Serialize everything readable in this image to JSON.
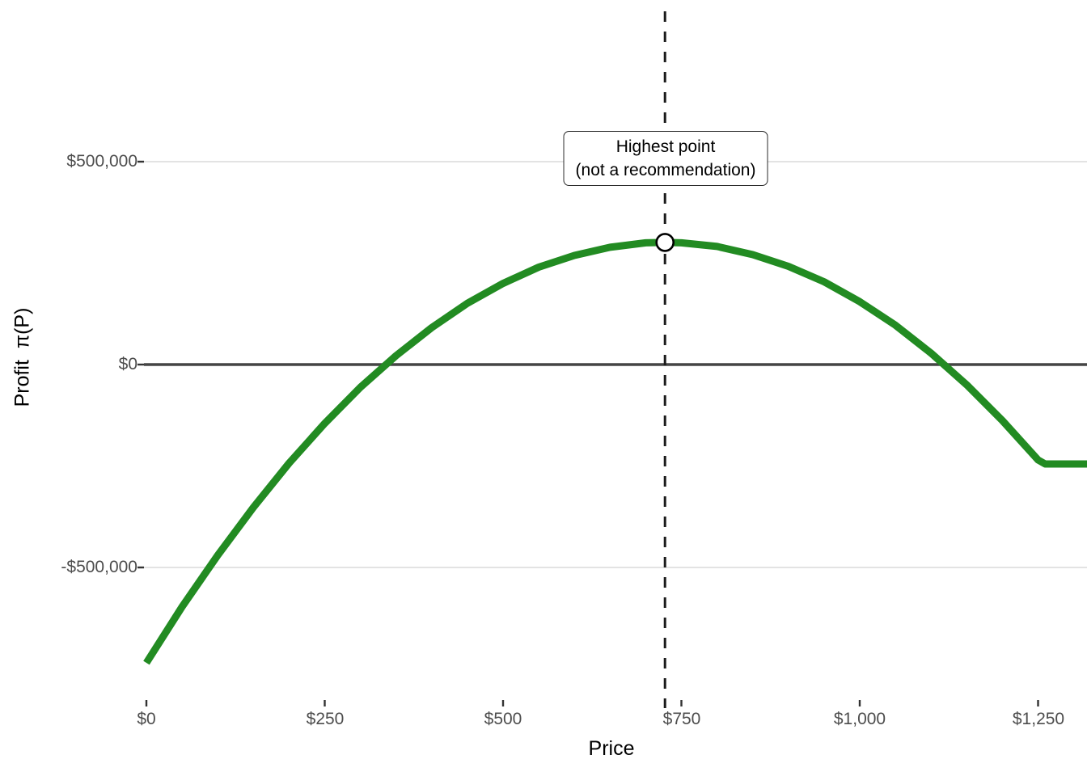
{
  "chart_data": {
    "type": "line",
    "title": "",
    "xlabel": "Price",
    "ylabel": "Profit  π(P)",
    "legend": "none",
    "grid": "horizontal-only",
    "x_ticks": [
      {
        "value": 0,
        "label": "$0"
      },
      {
        "value": 250,
        "label": "$250"
      },
      {
        "value": 500,
        "label": "$500"
      },
      {
        "value": 750,
        "label": "$750"
      },
      {
        "value": 1000,
        "label": "$1,000"
      },
      {
        "value": 1250,
        "label": "$1,250"
      }
    ],
    "y_ticks": [
      {
        "value": 500000,
        "label": "$500,000"
      },
      {
        "value": 0,
        "label": "$0"
      },
      {
        "value": -500000,
        "label": "-$500,000"
      }
    ],
    "xlim": [
      0,
      1320
    ],
    "ylim": [
      -850000,
      870000
    ],
    "zero_line": {
      "value": 0,
      "color": "#454545"
    },
    "series": [
      {
        "name": "profit-curve",
        "color": "#228B22",
        "points": [
          [
            0,
            -735000
          ],
          [
            50,
            -597000
          ],
          [
            100,
            -470000
          ],
          [
            150,
            -352000
          ],
          [
            200,
            -243000
          ],
          [
            250,
            -145000
          ],
          [
            300,
            -56000
          ],
          [
            350,
            22000
          ],
          [
            400,
            91000
          ],
          [
            450,
            151000
          ],
          [
            500,
            200000
          ],
          [
            550,
            240000
          ],
          [
            600,
            269000
          ],
          [
            650,
            289000
          ],
          [
            700,
            300000
          ],
          [
            727,
            301000
          ],
          [
            750,
            300000
          ],
          [
            800,
            291000
          ],
          [
            850,
            271000
          ],
          [
            900,
            242000
          ],
          [
            950,
            204000
          ],
          [
            1000,
            155000
          ],
          [
            1050,
            97000
          ],
          [
            1100,
            28000
          ],
          [
            1150,
            -50000
          ],
          [
            1200,
            -138000
          ],
          [
            1250,
            -235000
          ],
          [
            1260,
            -245000
          ],
          [
            1320,
            -245000
          ]
        ]
      }
    ],
    "vline": {
      "x": 727,
      "style": "dashed",
      "color": "#1a1a1a"
    },
    "highlight_point": {
      "x": 727,
      "y": 301000,
      "marker": "open-circle-white"
    },
    "breakeven_prices_approx": [
      333,
      1113
    ],
    "annotation": {
      "line1": "Highest point",
      "line2": "(not a recommendation)"
    },
    "colors": {
      "curve": "#228B22",
      "gridline": "#e3e3e3",
      "zero_line": "#454545",
      "vline": "#1a1a1a",
      "tick_text": "#4d4d4d",
      "tick_mark": "#333333"
    }
  }
}
